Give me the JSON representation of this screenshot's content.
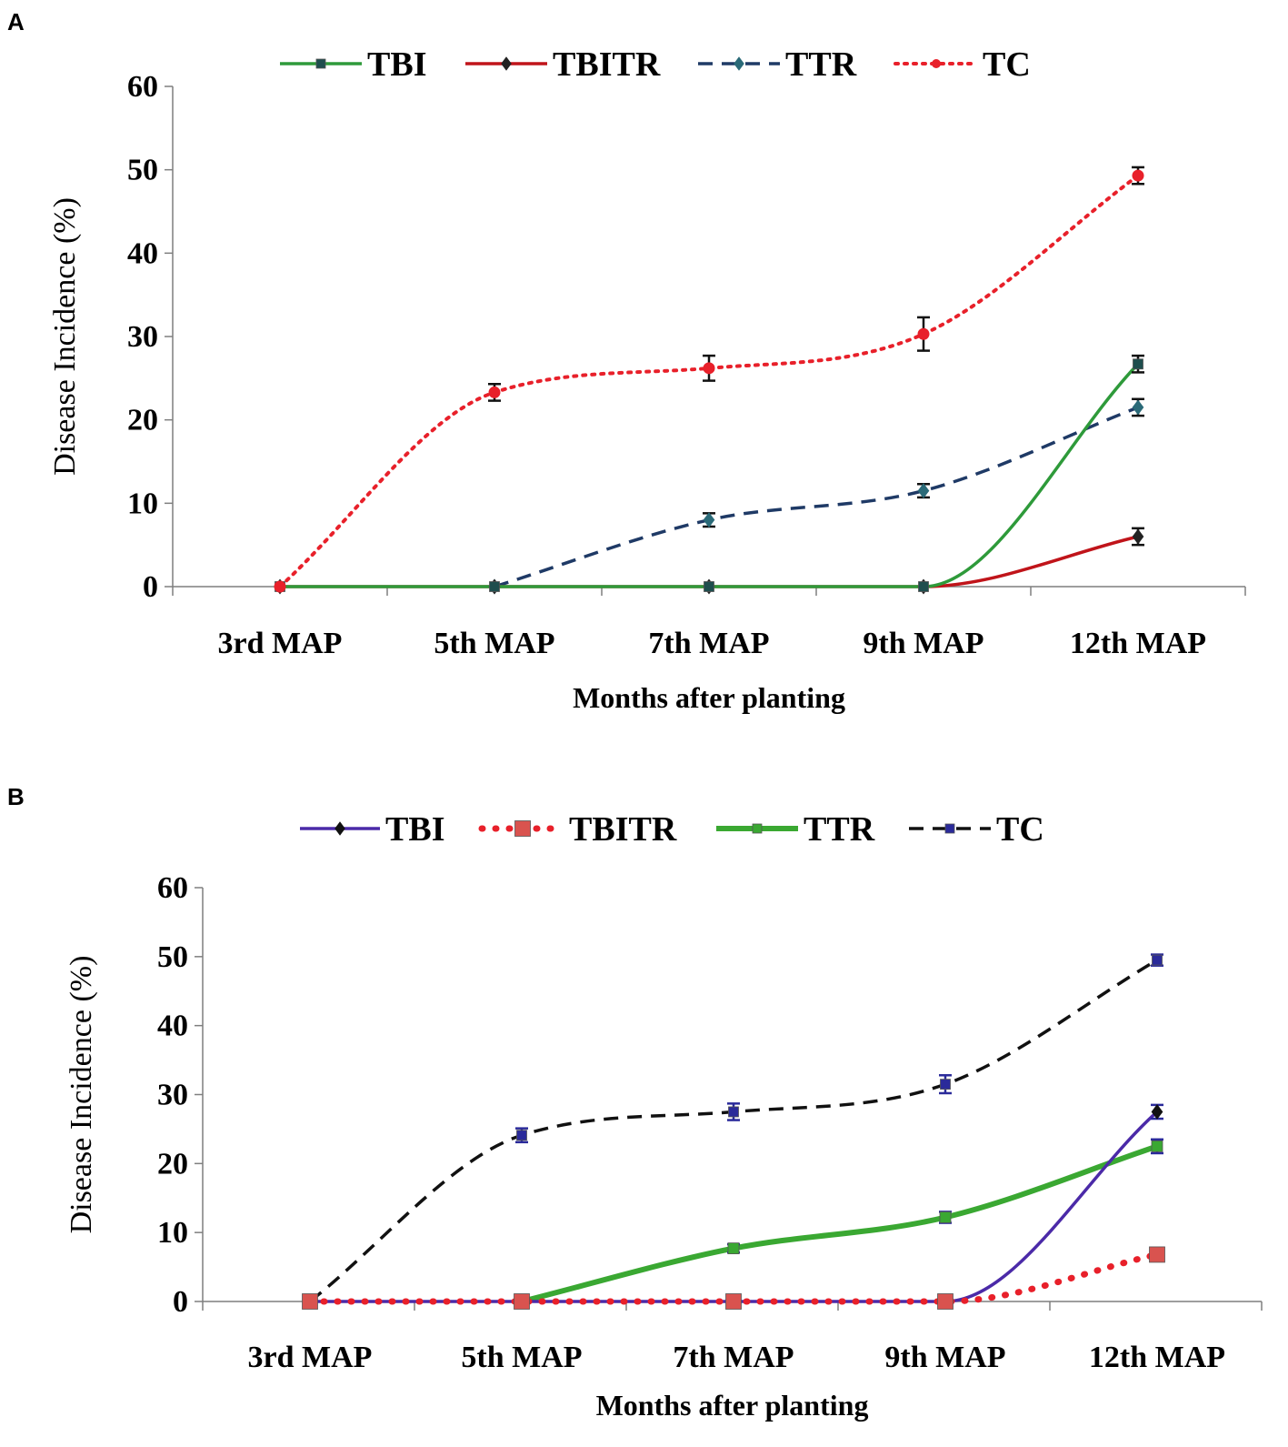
{
  "chart_data": [
    {
      "panel": "A",
      "type": "line",
      "xlabel": "Months after planting",
      "ylabel": "Disease Incidence (%)",
      "ylim": [
        0,
        60
      ],
      "yticks": [
        "0",
        "10",
        "20",
        "30",
        "40",
        "50",
        "60"
      ],
      "categories": [
        "3rd MAP",
        "5th MAP",
        "7th MAP",
        "9th MAP",
        "12th MAP"
      ],
      "series": [
        {
          "name": "TBI",
          "color": "#2e9a3a",
          "dash": "solid",
          "marker": "square",
          "markerColor": "#1f4e4e",
          "values": [
            0,
            0,
            0,
            0,
            26.7
          ],
          "errors": [
            0,
            0,
            0,
            0,
            1.0
          ]
        },
        {
          "name": "TBITR",
          "color": "#c0141a",
          "dash": "solid",
          "marker": "diamond",
          "markerColor": "#222222",
          "values": [
            0,
            0,
            0,
            0,
            6.0
          ],
          "errors": [
            0,
            0,
            0,
            0,
            1.0
          ]
        },
        {
          "name": "TTR",
          "color": "#1f3a66",
          "dash": "dashed",
          "marker": "diamond",
          "markerColor": "#2a6a78",
          "values": [
            null,
            0,
            8.0,
            11.5,
            21.5
          ],
          "errors": [
            0,
            0,
            0.8,
            0.8,
            1.0
          ]
        },
        {
          "name": "TC",
          "color": "#e8202a",
          "dash": "dotted",
          "marker": "circle",
          "markerColor": "#e8202a",
          "values": [
            0,
            23.3,
            26.2,
            30.3,
            49.3
          ],
          "errors": [
            0,
            1.0,
            1.5,
            2.0,
            1.0
          ]
        }
      ]
    },
    {
      "panel": "B",
      "type": "line",
      "xlabel": "Months after planting",
      "ylabel": "Disease Incidence (%)",
      "ylim": [
        0,
        60
      ],
      "yticks": [
        "0",
        "10",
        "20",
        "30",
        "40",
        "50",
        "60"
      ],
      "categories": [
        "3rd MAP",
        "5th MAP",
        "7th MAP",
        "9th MAP",
        "12th MAP"
      ],
      "series": [
        {
          "name": "TBI",
          "color": "#4b2aa8",
          "dash": "solid",
          "marker": "diamond",
          "markerColor": "#111111",
          "values": [
            0,
            0,
            0,
            0,
            27.5
          ],
          "errors": [
            0,
            0,
            0,
            0,
            1.0
          ]
        },
        {
          "name": "TBITR",
          "color": "#e8202a",
          "dash": "dotted",
          "marker": "square",
          "markerColor": "#d9534f",
          "values": [
            0,
            0,
            0,
            0,
            6.8
          ],
          "errors": [
            0,
            0,
            0,
            0,
            0.5
          ]
        },
        {
          "name": "TTR",
          "color": "#3aa832",
          "dash": "solid",
          "marker": "square",
          "markerColor": "#3aa832",
          "values": [
            null,
            0,
            7.7,
            12.2,
            22.5
          ],
          "errors": [
            0,
            0,
            0.6,
            0.8,
            1.0
          ]
        },
        {
          "name": "TC",
          "color": "#111111",
          "dash": "dashed",
          "marker": "square",
          "markerColor": "#2a2a9a",
          "values": [
            0,
            24.1,
            27.5,
            31.5,
            49.5
          ],
          "errors": [
            0,
            1.0,
            1.2,
            1.3,
            0.8
          ]
        }
      ]
    }
  ]
}
